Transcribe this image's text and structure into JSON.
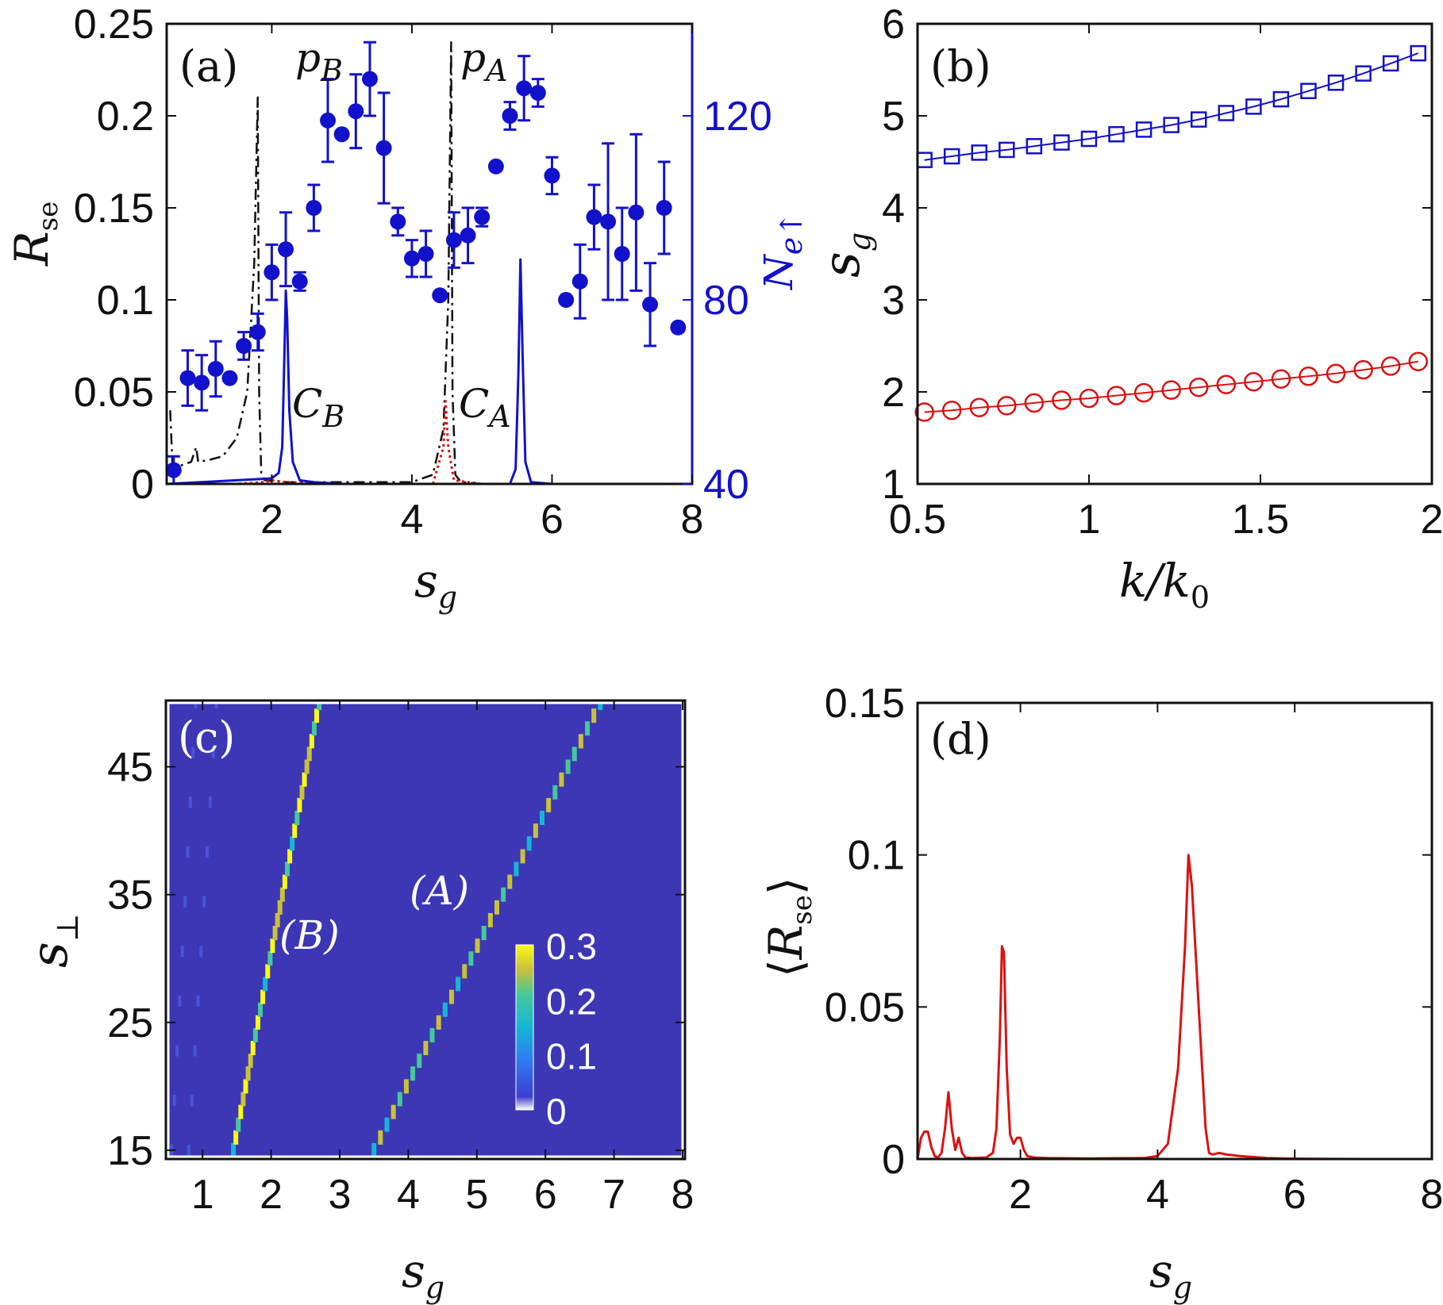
{
  "figure": {
    "panels": [
      {
        "id": "a",
        "label": "(a)"
      },
      {
        "id": "b",
        "label": "(b)"
      },
      {
        "id": "c",
        "label": "(c)"
      },
      {
        "id": "d",
        "label": "(d)"
      }
    ]
  },
  "chart_data": [
    {
      "panel": "a",
      "type": "line",
      "title": "",
      "xlabel": "s_g",
      "ylabel": "R_se",
      "y2label": "N_e↑",
      "xlim": [
        0.5,
        8
      ],
      "ylim": [
        0,
        0.25
      ],
      "y2lim": [
        40,
        140
      ],
      "xticks": [
        2,
        4,
        6,
        8
      ],
      "yticks": [
        "0",
        "0.05",
        "0.1",
        "0.15",
        "0.2",
        "0.25"
      ],
      "y2ticks": [
        "40",
        "80",
        "120"
      ],
      "annotations": [
        "p_B",
        "p_A",
        "C_B",
        "C_A"
      ],
      "series": [
        {
          "name": "R_se solid (blue)",
          "color": "#1212cc",
          "style": "solid",
          "x": [
            0.5,
            1.0,
            1.5,
            2.0,
            2.1,
            2.15,
            2.18,
            2.2,
            2.22,
            2.25,
            2.3,
            2.4,
            2.6,
            3.0,
            4.0,
            5.0,
            5.4,
            5.48,
            5.52,
            5.55,
            5.58,
            5.62,
            5.7,
            6.0,
            7.0,
            8.0
          ],
          "y": [
            0.0,
            0.001,
            0.002,
            0.003,
            0.006,
            0.02,
            0.07,
            0.105,
            0.09,
            0.04,
            0.012,
            0.002,
            0.001,
            0.0,
            0.0,
            0.0,
            0.0,
            0.008,
            0.06,
            0.122,
            0.07,
            0.012,
            0.001,
            0.0,
            0.0,
            0.0
          ]
        },
        {
          "name": "R_se dash-dot (black)",
          "color": "#111111",
          "style": "dashdot",
          "x": [
            0.55,
            0.58,
            0.62,
            0.7,
            0.85,
            0.92,
            0.95,
            1.1,
            1.3,
            1.5,
            1.65,
            1.75,
            1.8,
            1.82,
            1.85,
            1.9,
            2.2,
            3.0,
            4.0,
            4.3,
            4.45,
            4.52,
            4.56,
            4.58,
            4.62,
            4.7,
            5.0
          ],
          "y": [
            0.04,
            0.012,
            0.01,
            0.01,
            0.012,
            0.02,
            0.012,
            0.013,
            0.015,
            0.025,
            0.05,
            0.12,
            0.21,
            0.05,
            0.005,
            0.002,
            0.001,
            0.001,
            0.001,
            0.005,
            0.03,
            0.1,
            0.24,
            0.05,
            0.005,
            0.001,
            0.0
          ]
        },
        {
          "name": "R_se dotted (red)",
          "color": "#dd1111",
          "style": "dotted",
          "x": [
            0.5,
            1.5,
            1.9,
            2.0,
            2.2,
            3.0,
            4.3,
            4.45,
            4.48,
            4.52,
            4.6,
            5.0,
            8.0
          ],
          "y": [
            0.0,
            0.0,
            0.001,
            0.002,
            0.001,
            0.0,
            0.0,
            0.02,
            0.045,
            0.02,
            0.002,
            0.0,
            0.0
          ]
        },
        {
          "name": "N_e↑ (blue markers, right axis)",
          "color": "#1212cc",
          "style": "markers-errorbars",
          "axis": "right",
          "x": [
            0.6,
            0.8,
            1.0,
            1.2,
            1.4,
            1.6,
            1.8,
            2.0,
            2.2,
            2.4,
            2.6,
            2.8,
            3.0,
            3.2,
            3.4,
            3.6,
            3.8,
            4.0,
            4.2,
            4.4,
            4.6,
            4.8,
            5.0,
            5.2,
            5.4,
            5.6,
            5.8,
            6.0,
            6.2,
            6.4,
            6.6,
            6.8,
            7.0,
            7.2,
            7.4,
            7.6,
            7.8
          ],
          "y": [
            43,
            63,
            62,
            65,
            63,
            70,
            73,
            86,
            91,
            84,
            100,
            119,
            116,
            121,
            128,
            113,
            97,
            89,
            90,
            81,
            93,
            94,
            98,
            109,
            120,
            126,
            125,
            107,
            80,
            84,
            98,
            97,
            90,
            99,
            79,
            100,
            74
          ],
          "err": [
            3,
            6,
            6,
            6,
            0,
            3,
            4,
            6,
            8,
            2,
            5,
            9,
            0,
            8,
            8,
            12,
            3,
            4,
            5,
            0,
            6,
            6,
            2,
            0,
            3,
            7,
            3,
            4,
            0,
            8,
            7,
            17,
            10,
            17,
            9,
            10,
            0
          ]
        }
      ]
    },
    {
      "panel": "b",
      "type": "line",
      "title": "",
      "xlabel": "k/k_0",
      "ylabel": "s_g",
      "xlim": [
        0.5,
        2
      ],
      "ylim": [
        1,
        6
      ],
      "xticks": [
        "0.5",
        "1",
        "1.5",
        "2"
      ],
      "yticks": [
        "1",
        "2",
        "3",
        "4",
        "5",
        "6"
      ],
      "series": [
        {
          "name": "upper (blue squares)",
          "color": "#1212cc",
          "marker": "square",
          "x": [
            0.52,
            0.6,
            0.68,
            0.76,
            0.84,
            0.92,
            1.0,
            1.08,
            1.16,
            1.24,
            1.32,
            1.4,
            1.48,
            1.56,
            1.64,
            1.72,
            1.8,
            1.88,
            1.96
          ],
          "y": [
            4.52,
            4.56,
            4.6,
            4.63,
            4.67,
            4.71,
            4.75,
            4.8,
            4.85,
            4.9,
            4.96,
            5.03,
            5.1,
            5.18,
            5.27,
            5.36,
            5.46,
            5.57,
            5.68
          ]
        },
        {
          "name": "lower (red circles)",
          "color": "#dd1111",
          "marker": "circle",
          "x": [
            0.52,
            0.6,
            0.68,
            0.76,
            0.84,
            0.92,
            1.0,
            1.08,
            1.16,
            1.24,
            1.32,
            1.4,
            1.48,
            1.56,
            1.64,
            1.72,
            1.8,
            1.88,
            1.96
          ],
          "y": [
            1.78,
            1.8,
            1.83,
            1.85,
            1.88,
            1.91,
            1.93,
            1.96,
            1.99,
            2.02,
            2.05,
            2.08,
            2.11,
            2.14,
            2.17,
            2.2,
            2.24,
            2.28,
            2.33
          ]
        }
      ]
    },
    {
      "panel": "c",
      "type": "heatmap",
      "title": "",
      "xlabel": "s_g",
      "ylabel": "s_⊥",
      "xlim": [
        0.5,
        8
      ],
      "ylim": [
        14.5,
        50
      ],
      "xticks": [
        "1",
        "2",
        "3",
        "4",
        "5",
        "6",
        "7",
        "8"
      ],
      "yticks": [
        "15",
        "25",
        "35",
        "45"
      ],
      "colorbar": {
        "min": 0,
        "max": 0.3,
        "ticks": [
          "0.3",
          "0.2",
          "0.1",
          "0"
        ]
      },
      "annotations": [
        "(A)",
        "(B)"
      ],
      "ridges": [
        {
          "name": "B",
          "x_start": 1.45,
          "y_start": 15,
          "x_end": 2.7,
          "y_end": 50,
          "peak": 0.28
        },
        {
          "name": "A",
          "x_start": 3.5,
          "y_start": 15,
          "x_end": 6.8,
          "y_end": 50,
          "peak": 0.22
        }
      ],
      "faint_ridges": [
        {
          "x_start": 0.55,
          "y_start": 15,
          "x_end": 0.9,
          "y_end": 50,
          "peak": 0.06
        },
        {
          "x_start": 0.8,
          "y_start": 15,
          "x_end": 1.2,
          "y_end": 50,
          "peak": 0.04
        }
      ]
    },
    {
      "panel": "d",
      "type": "line",
      "title": "",
      "xlabel": "s_g",
      "ylabel": "⟨R_se⟩",
      "xlim": [
        0.5,
        8
      ],
      "ylim": [
        0,
        0.15
      ],
      "xticks": [
        "2",
        "4",
        "6",
        "8"
      ],
      "yticks": [
        "0",
        "0.05",
        "0.1",
        "0.15"
      ],
      "series": [
        {
          "name": "<R_se> (red)",
          "color": "#dd1111",
          "x": [
            0.5,
            0.55,
            0.6,
            0.65,
            0.7,
            0.75,
            0.8,
            0.85,
            0.9,
            0.95,
            1.0,
            1.05,
            1.1,
            1.15,
            1.2,
            1.3,
            1.5,
            1.6,
            1.65,
            1.7,
            1.73,
            1.76,
            1.8,
            1.85,
            1.9,
            1.95,
            2.0,
            2.05,
            2.1,
            2.2,
            2.4,
            3.0,
            3.8,
            4.0,
            4.15,
            4.3,
            4.4,
            4.45,
            4.5,
            4.6,
            4.7,
            4.75,
            4.8,
            4.9,
            5.0,
            5.2,
            5.6,
            6.0,
            7.0,
            8.0
          ],
          "y": [
            0.0,
            0.007,
            0.009,
            0.009,
            0.004,
            0.001,
            0.0005,
            0.002,
            0.01,
            0.022,
            0.01,
            0.003,
            0.007,
            0.002,
            0.0005,
            0.0003,
            0.0005,
            0.002,
            0.01,
            0.04,
            0.07,
            0.068,
            0.03,
            0.008,
            0.005,
            0.007,
            0.007,
            0.003,
            0.001,
            0.0005,
            0.0003,
            0.0002,
            0.0003,
            0.001,
            0.005,
            0.03,
            0.07,
            0.1,
            0.09,
            0.05,
            0.01,
            0.002,
            0.0015,
            0.002,
            0.0015,
            0.001,
            0.0003,
            0.0001,
            0.0,
            0.0
          ]
        }
      ]
    }
  ]
}
